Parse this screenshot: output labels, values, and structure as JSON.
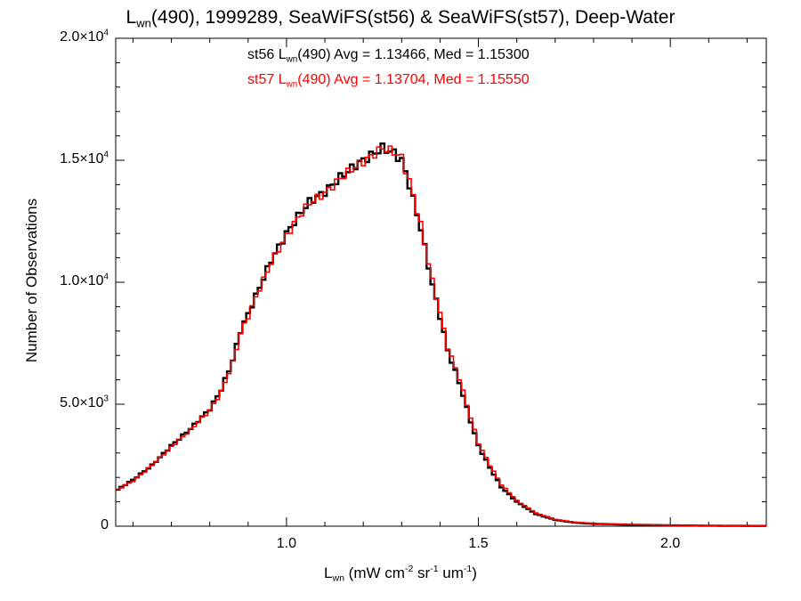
{
  "chart_data": {
    "type": "histogram",
    "title": {
      "prefix": "L",
      "sub": "wn",
      "rest": "(490), 1999289, SeaWiFS(st56) & SeaWiFS(st57), Deep-Water"
    },
    "xlabel": {
      "main": "L",
      "sub": "wn",
      "rest": " (mW cm",
      "sup1": "-2",
      "rest2": " sr",
      "sup2": "-1",
      "rest3": " um",
      "sup3": "-1",
      "close": ")"
    },
    "ylabel": "Number of Observations",
    "xlim": [
      0.555,
      2.25
    ],
    "ylim": [
      0,
      20000
    ],
    "x_ticks": [
      {
        "value": 1.0,
        "label": "1.0"
      },
      {
        "value": 1.5,
        "label": "1.5"
      },
      {
        "value": 2.0,
        "label": "2.0"
      }
    ],
    "y_ticks": [
      {
        "value": 0,
        "mant": "0",
        "exp": ""
      },
      {
        "value": 5000,
        "mant": "5.0×10",
        "exp": "3"
      },
      {
        "value": 10000,
        "mant": "1.0×10",
        "exp": "4"
      },
      {
        "value": 15000,
        "mant": "1.5×10",
        "exp": "4"
      },
      {
        "value": 20000,
        "mant": "2.0×10",
        "exp": "4"
      }
    ],
    "stats": [
      {
        "prefix": "st56 L",
        "sub": "wn",
        "rest": "(490) Avg = 1.13466, Med = 1.15300",
        "color": "#000000"
      },
      {
        "prefix": "st57 L",
        "sub": "wn",
        "rest": "(490) Avg = 1.13704, Med = 1.15550",
        "color": "#ff0000"
      }
    ],
    "bin_width": 0.01,
    "series": [
      {
        "name": "st56",
        "color": "#000000",
        "points": [
          [
            0.56,
            1500
          ],
          [
            0.6,
            1900
          ],
          [
            0.65,
            2500
          ],
          [
            0.7,
            3300
          ],
          [
            0.75,
            4000
          ],
          [
            0.8,
            4800
          ],
          [
            0.83,
            5600
          ],
          [
            0.86,
            6800
          ],
          [
            0.88,
            8000
          ],
          [
            0.9,
            8700
          ],
          [
            0.93,
            9800
          ],
          [
            0.96,
            10900
          ],
          [
            1.0,
            12000
          ],
          [
            1.03,
            12700
          ],
          [
            1.06,
            13300
          ],
          [
            1.1,
            13700
          ],
          [
            1.14,
            14300
          ],
          [
            1.18,
            14800
          ],
          [
            1.22,
            15200
          ],
          [
            1.25,
            15500
          ],
          [
            1.28,
            15300
          ],
          [
            1.3,
            15000
          ],
          [
            1.32,
            14000
          ],
          [
            1.35,
            12200
          ],
          [
            1.38,
            9900
          ],
          [
            1.4,
            8600
          ],
          [
            1.42,
            7200
          ],
          [
            1.45,
            5900
          ],
          [
            1.48,
            4300
          ],
          [
            1.5,
            3300
          ],
          [
            1.53,
            2400
          ],
          [
            1.56,
            1600
          ],
          [
            1.6,
            1000
          ],
          [
            1.65,
            500
          ],
          [
            1.7,
            260
          ],
          [
            1.75,
            150
          ],
          [
            1.8,
            100
          ],
          [
            1.9,
            60
          ],
          [
            2.0,
            35
          ],
          [
            2.1,
            20
          ],
          [
            2.25,
            10
          ]
        ]
      },
      {
        "name": "st57",
        "color": "#ff0000",
        "points": [
          [
            0.56,
            1500
          ],
          [
            0.6,
            1850
          ],
          [
            0.65,
            2500
          ],
          [
            0.7,
            3250
          ],
          [
            0.75,
            3950
          ],
          [
            0.8,
            4750
          ],
          [
            0.83,
            5500
          ],
          [
            0.86,
            6700
          ],
          [
            0.88,
            7900
          ],
          [
            0.9,
            8600
          ],
          [
            0.93,
            9750
          ],
          [
            0.96,
            10800
          ],
          [
            1.0,
            11900
          ],
          [
            1.03,
            12650
          ],
          [
            1.06,
            13250
          ],
          [
            1.1,
            13650
          ],
          [
            1.14,
            14250
          ],
          [
            1.18,
            14750
          ],
          [
            1.22,
            15150
          ],
          [
            1.25,
            15500
          ],
          [
            1.28,
            15350
          ],
          [
            1.3,
            15100
          ],
          [
            1.32,
            14150
          ],
          [
            1.35,
            12350
          ],
          [
            1.38,
            10050
          ],
          [
            1.4,
            8750
          ],
          [
            1.42,
            7350
          ],
          [
            1.45,
            6050
          ],
          [
            1.48,
            4450
          ],
          [
            1.5,
            3400
          ],
          [
            1.53,
            2500
          ],
          [
            1.56,
            1700
          ],
          [
            1.6,
            1050
          ],
          [
            1.65,
            540
          ],
          [
            1.7,
            280
          ],
          [
            1.75,
            165
          ],
          [
            1.8,
            110
          ],
          [
            1.9,
            65
          ],
          [
            2.0,
            38
          ],
          [
            2.1,
            22
          ],
          [
            2.25,
            10
          ]
        ]
      }
    ]
  }
}
